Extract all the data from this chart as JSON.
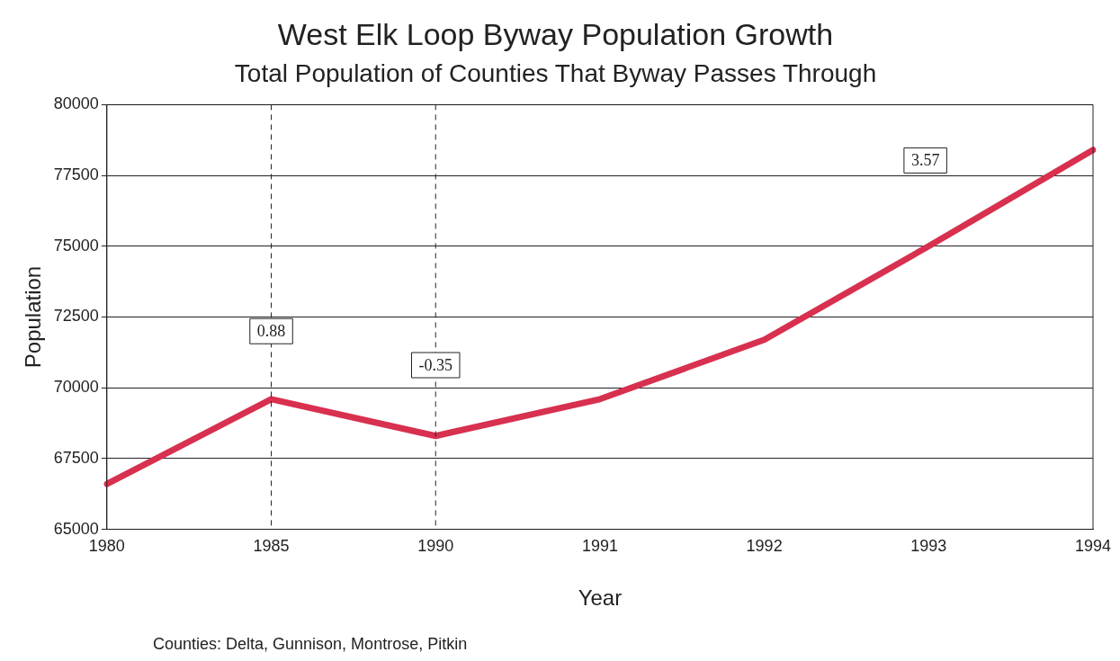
{
  "chart_data": {
    "type": "line",
    "title": "West Elk Loop Byway Population Growth",
    "subtitle": "Total Population of Counties That Byway Passes Through",
    "xlabel": "Year",
    "ylabel": "Population",
    "categories": [
      "1980",
      "1985",
      "1990",
      "1991",
      "1992",
      "1993",
      "1994"
    ],
    "series": [
      {
        "color": "#d8304f",
        "values": [
          66600,
          69600,
          68300,
          69600,
          71700,
          75000,
          78400
        ]
      }
    ],
    "ylim": [
      65000,
      80000
    ],
    "yticks": [
      65000,
      67500,
      70000,
      72500,
      75000,
      77500,
      80000
    ],
    "grid": "y",
    "marker": "none",
    "line_style": "solid",
    "legend": false,
    "ref_lines": [
      {
        "axis": "x",
        "value": "1985",
        "line_style": "dashed",
        "color": "#222222"
      },
      {
        "axis": "x",
        "value": "1990",
        "line_style": "dashed",
        "color": "#222222"
      }
    ],
    "annotations": [
      {
        "text": "0.88",
        "x": "1985",
        "y": 72000
      },
      {
        "text": "-0.35",
        "x": "1990",
        "y": 70800
      },
      "3.57",
      "Counties: Delta, Gunnison, Montrose, Pitkin"
    ]
  }
}
